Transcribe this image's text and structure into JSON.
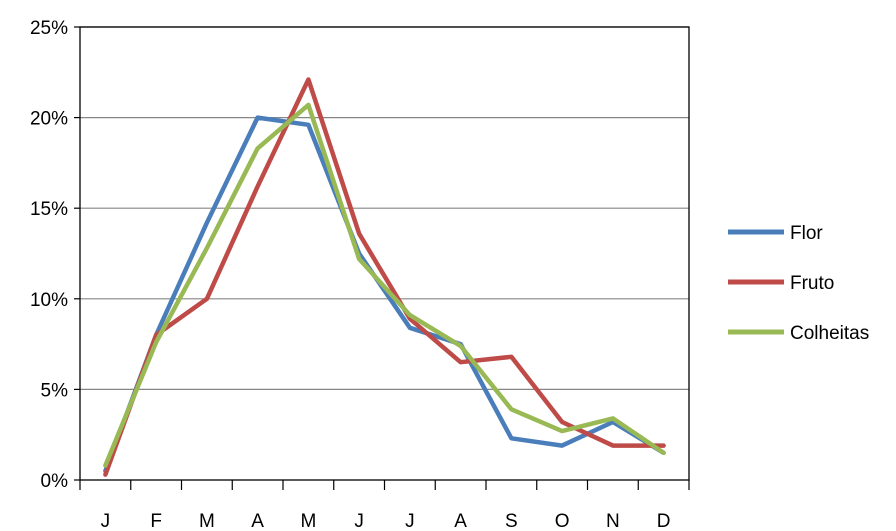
{
  "chart_data": {
    "type": "line",
    "categories": [
      "J",
      "F",
      "M",
      "A",
      "M",
      "J",
      "J",
      "A",
      "S",
      "O",
      "N",
      "D"
    ],
    "series": [
      {
        "name": "Flor",
        "color": "#4a7ebb",
        "values": [
          0.5,
          8.0,
          14.2,
          20.0,
          19.6,
          12.5,
          8.4,
          7.5,
          2.3,
          1.9,
          3.2,
          1.5
        ]
      },
      {
        "name": "Fruto",
        "color": "#be4b48",
        "values": [
          0.3,
          8.0,
          10.0,
          16.2,
          22.1,
          13.6,
          8.9,
          6.5,
          6.8,
          3.2,
          1.9,
          1.9
        ]
      },
      {
        "name": "Colheitas",
        "color": "#98b954",
        "values": [
          0.8,
          7.6,
          12.8,
          18.3,
          20.7,
          12.2,
          9.1,
          7.4,
          3.9,
          2.7,
          3.4,
          1.5
        ]
      }
    ],
    "y_ticks": [
      "0%",
      "5%",
      "10%",
      "15%",
      "20%",
      "25%"
    ],
    "ylim": [
      0,
      25
    ],
    "grid": true,
    "legend": {
      "placement": "right"
    },
    "title": "",
    "xlabel": "",
    "ylabel": ""
  }
}
